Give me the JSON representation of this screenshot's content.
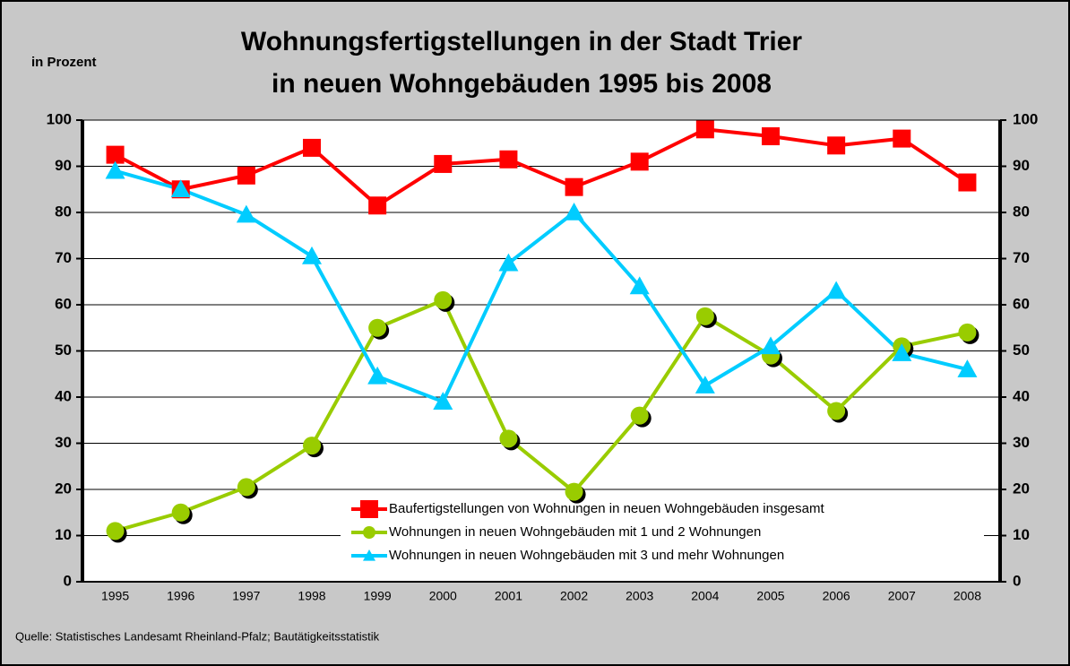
{
  "chart_data": {
    "type": "line",
    "title": [
      "Wohnungsfertigstellungen in der Stadt Trier",
      "in neuen Wohngebäuden 1995 bis 2008"
    ],
    "y_label": "in Prozent",
    "source": "Quelle: Statistisches Landesamt Rheinland-Pfalz; Bautätigkeitsstatistik",
    "categories": [
      "1995",
      "1996",
      "1997",
      "1998",
      "1999",
      "2000",
      "2001",
      "2002",
      "2003",
      "2004",
      "2005",
      "2006",
      "2007",
      "2008"
    ],
    "series": [
      {
        "name": "Baufertigstellungen von Wohnungen in neuen Wohngebäuden insgesamt",
        "color": "#ff0000",
        "marker": "square",
        "values": [
          92.5,
          85,
          88,
          94,
          81.5,
          90.5,
          91.5,
          85.5,
          91,
          98,
          96.5,
          94.5,
          96,
          86.5
        ]
      },
      {
        "name": "Wohnungen in neuen Wohngebäuden mit 1 und 2 Wohnungen",
        "color": "#99cc00",
        "marker": "circle",
        "values": [
          11,
          15,
          20.5,
          29.5,
          55,
          61,
          31,
          19.5,
          36,
          57.5,
          49,
          37,
          51,
          54
        ]
      },
      {
        "name": "Wohnungen in neuen Wohngebäuden mit 3 und mehr Wohnungen",
        "color": "#00ccff",
        "marker": "triangle",
        "values": [
          89,
          85,
          79.5,
          70.5,
          44.5,
          39,
          69,
          80,
          64,
          42.5,
          51,
          63,
          49.5,
          46
        ]
      }
    ],
    "ylim": [
      0,
      100
    ],
    "yticks": [
      0,
      10,
      20,
      30,
      40,
      50,
      60,
      70,
      80,
      90,
      100
    ],
    "y2lim": [
      0,
      100
    ],
    "y2ticks": [
      0,
      10,
      20,
      30,
      40,
      50,
      60,
      70,
      80,
      90,
      100
    ],
    "grid": true
  }
}
